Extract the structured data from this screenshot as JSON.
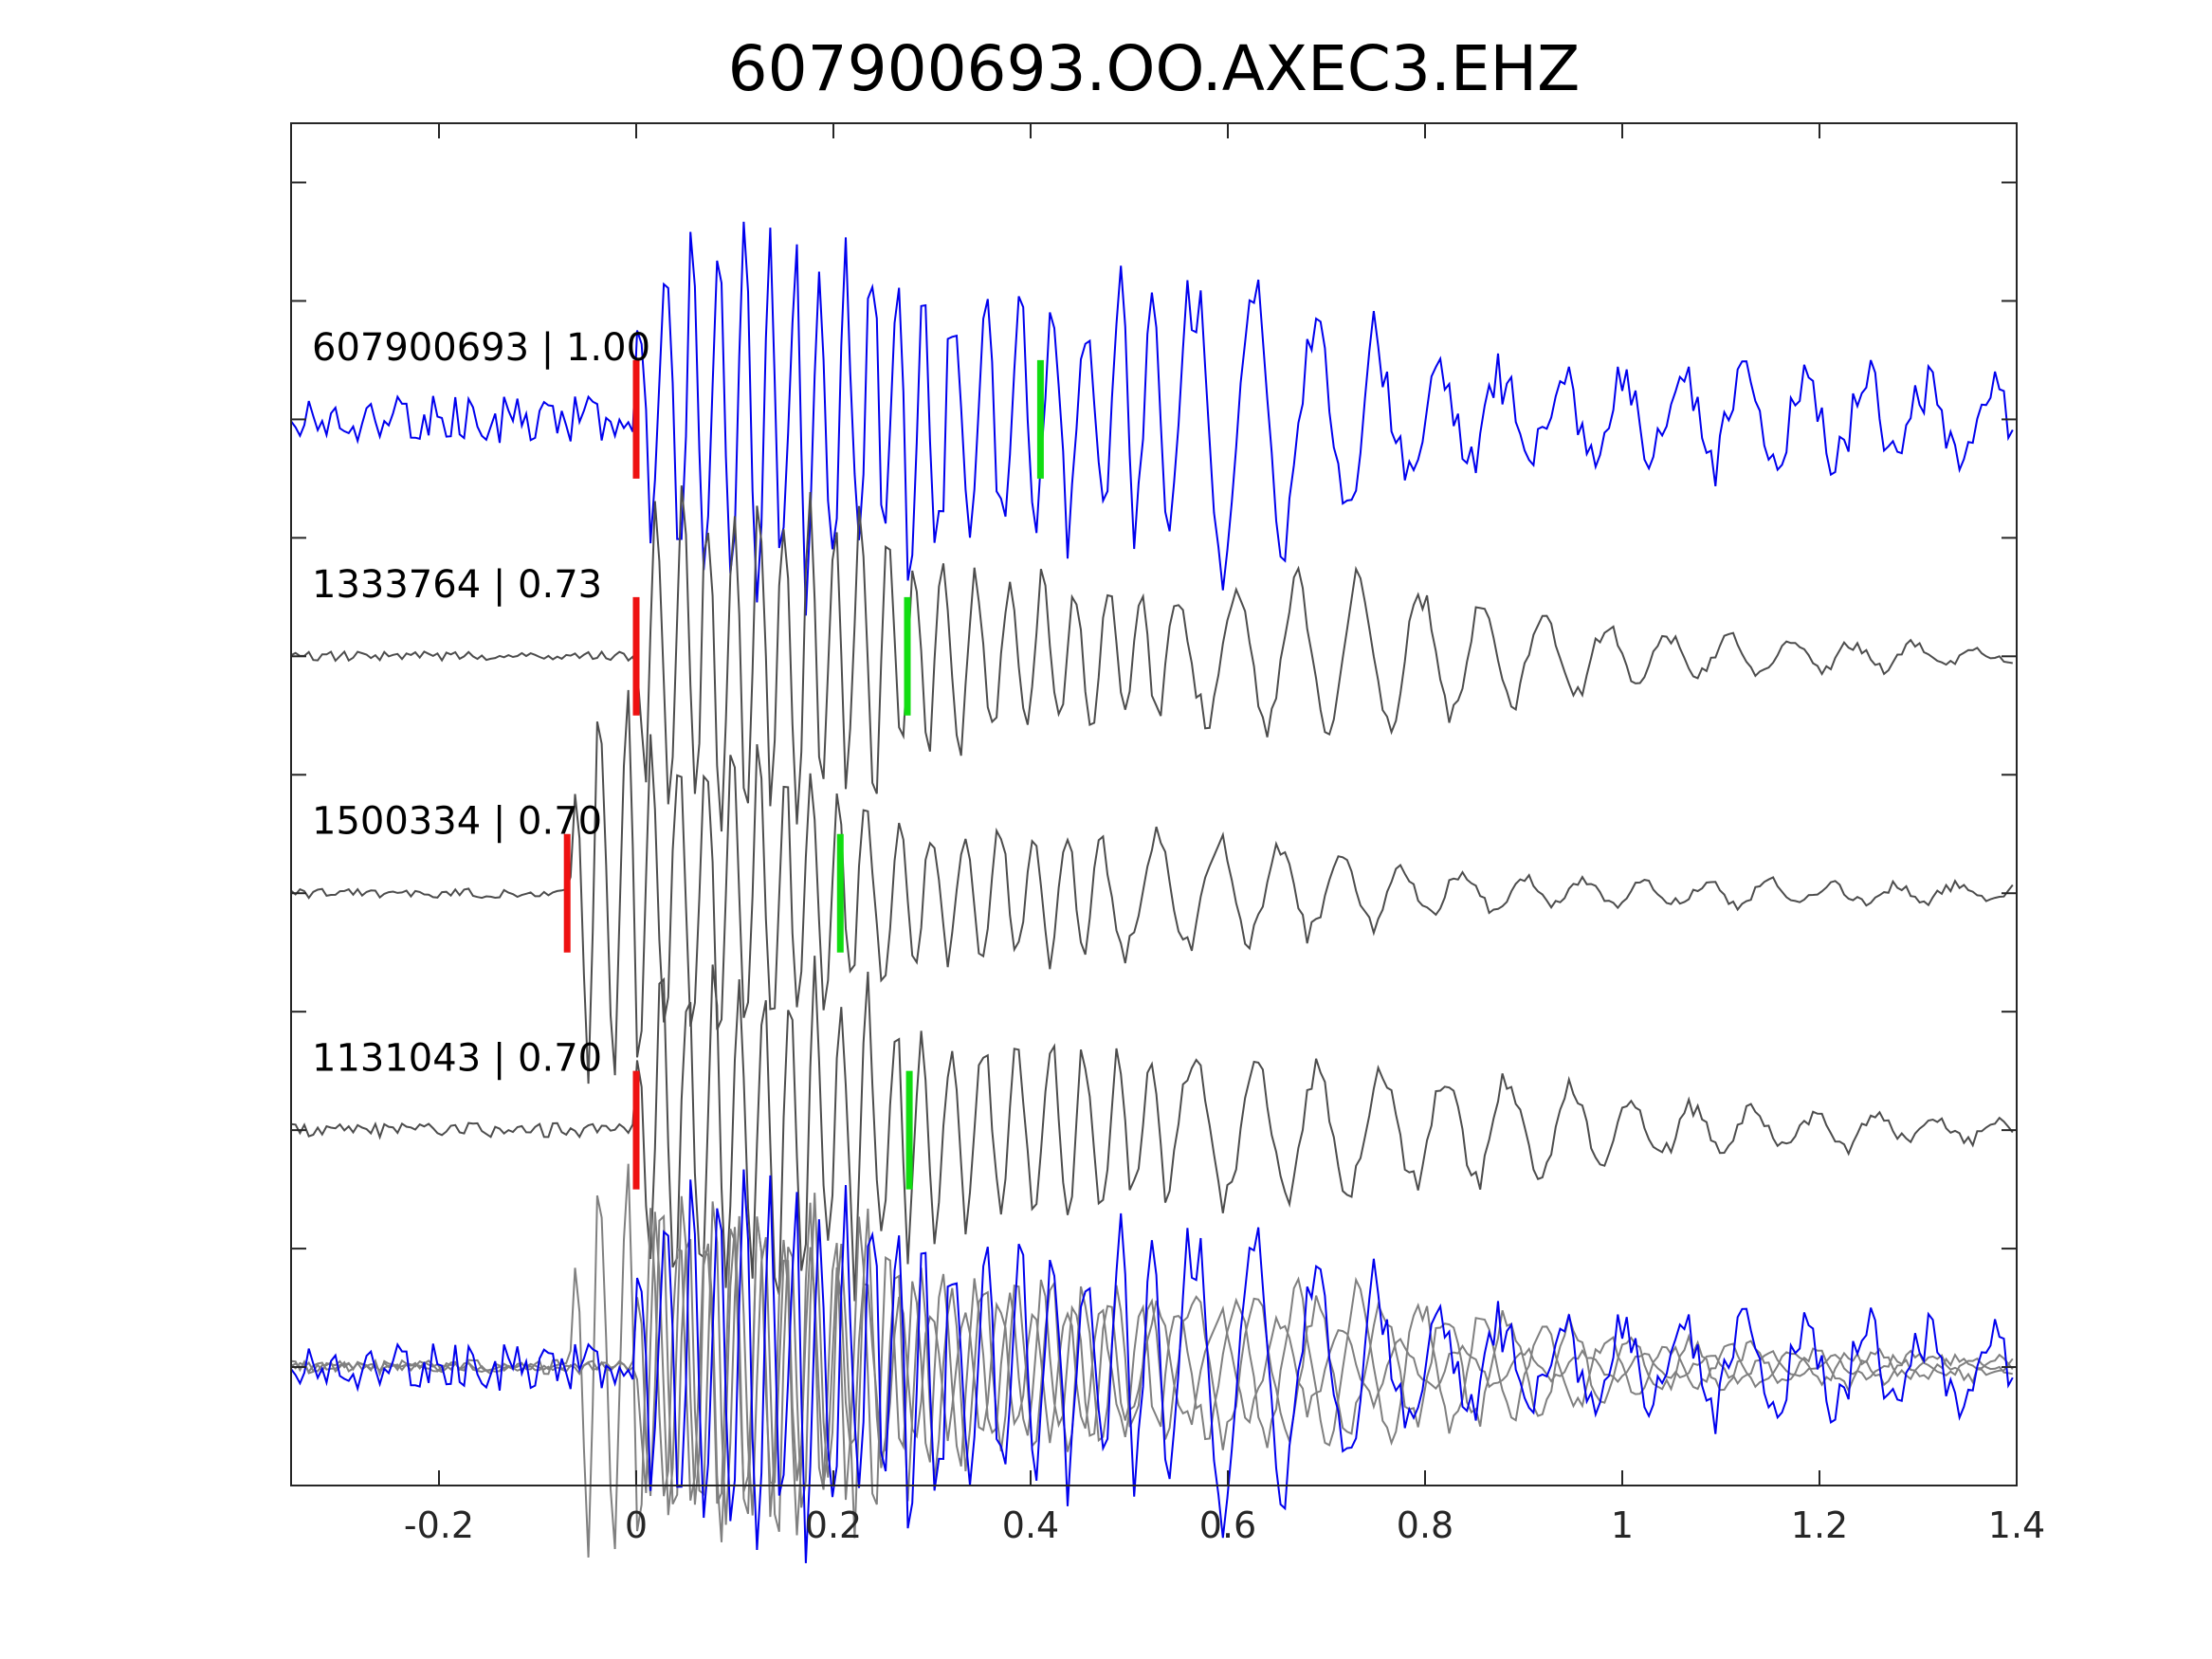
{
  "chart_data": {
    "type": "line",
    "title": "607900693.OO.AXEC3.EHZ",
    "xlabel": "",
    "ylabel": "",
    "xlim": [
      -0.35,
      1.4
    ],
    "ylim": [
      -5.5,
      0.25
    ],
    "x_ticks": [
      -0.2,
      0,
      0.2,
      0.4,
      0.6,
      0.8,
      1,
      1.2,
      1.4
    ],
    "x_tick_labels": [
      "-0.2",
      "0",
      "0.2",
      "0.4",
      "0.6",
      "0.8",
      "1",
      "1.2",
      "1.4"
    ],
    "y_ticks": [
      -5.5,
      -5,
      -4.5,
      -4,
      -3.5,
      -3,
      -2.5,
      -2,
      -1.5,
      -1,
      -0.5,
      0
    ],
    "grid": false,
    "legend": "none",
    "colors": {
      "master": "#0000ee",
      "neighbor": "#4d4d4d",
      "overlay_neighbor": "#808080",
      "p_pick": "#ee1111",
      "s_pick": "#11dd11"
    },
    "series": [
      {
        "label": "607900693 | 1.00",
        "offset": -1,
        "color": "#0000ee",
        "p_pick": 0.0,
        "s_pick": 0.41,
        "onset": 0.0,
        "envelope": [
          [
            0.0,
            0.45
          ],
          [
            0.03,
            0.9
          ],
          [
            0.22,
            0.85
          ],
          [
            0.42,
            0.55
          ],
          [
            0.62,
            0.75
          ],
          [
            0.73,
            0.5
          ],
          [
            0.78,
            0.25
          ],
          [
            1.4,
            0.2
          ]
        ],
        "noise": 0.1
      },
      {
        "label": "1333764 | 0.73",
        "offset": -2,
        "color": "#4d4d4d",
        "p_pick": 0.0,
        "s_pick": 0.275,
        "onset": 0.0,
        "envelope": [
          [
            0.0,
            0.4
          ],
          [
            0.02,
            0.85
          ],
          [
            0.18,
            0.8
          ],
          [
            0.35,
            0.4
          ],
          [
            0.55,
            0.3
          ],
          [
            0.62,
            0.35
          ],
          [
            0.7,
            0.4
          ],
          [
            0.9,
            0.25
          ],
          [
            1.05,
            0.12
          ],
          [
            1.4,
            0.03
          ]
        ],
        "noise": 0.02
      },
      {
        "label": "1500334 | 0.70",
        "offset": -3,
        "color": "#4d4d4d",
        "p_pick": -0.07,
        "s_pick": 0.207,
        "onset": -0.07,
        "envelope": [
          [
            -0.07,
            0.45
          ],
          [
            -0.045,
            0.95
          ],
          [
            0.1,
            0.75
          ],
          [
            0.3,
            0.35
          ],
          [
            0.55,
            0.3
          ],
          [
            0.7,
            0.2
          ],
          [
            0.85,
            0.08
          ],
          [
            1.4,
            0.03
          ]
        ],
        "noise": 0.02
      },
      {
        "label": "1131043 | 0.70",
        "offset": -4,
        "color": "#4d4d4d",
        "p_pick": 0.0,
        "s_pick": 0.277,
        "onset": 0.0,
        "envelope": [
          [
            0.0,
            0.4
          ],
          [
            0.02,
            0.85
          ],
          [
            0.18,
            0.8
          ],
          [
            0.35,
            0.45
          ],
          [
            0.55,
            0.35
          ],
          [
            0.62,
            0.35
          ],
          [
            0.7,
            0.35
          ],
          [
            0.9,
            0.25
          ],
          [
            1.05,
            0.12
          ],
          [
            1.4,
            0.04
          ]
        ],
        "noise": 0.03
      }
    ],
    "overlay": {
      "offset": -5,
      "description": "all traces superimposed"
    }
  }
}
